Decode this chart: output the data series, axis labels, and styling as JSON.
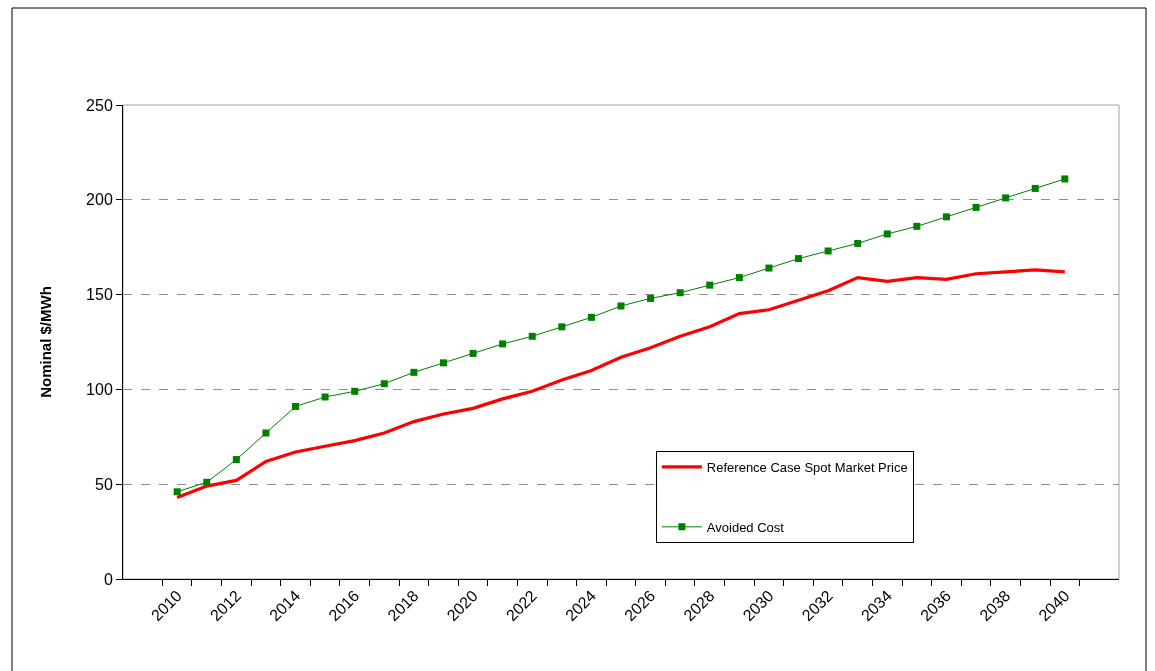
{
  "chart_data": {
    "type": "line",
    "ylabel": "Nominal $/MWh",
    "categories": [
      "2010",
      null,
      "2012",
      null,
      "2014",
      null,
      "2016",
      null,
      "2018",
      null,
      "2020",
      null,
      "2022",
      null,
      "2024",
      null,
      "2026",
      null,
      "2028",
      null,
      "2030",
      null,
      "2032",
      null,
      "2034",
      null,
      "2036",
      null,
      "2038",
      null,
      "2040"
    ],
    "series": [
      {
        "name": "Reference Case Spot Market Price",
        "color": "#ff0000",
        "marker": "none",
        "line_style": "solid",
        "values": [
          43,
          49,
          52,
          62,
          67,
          70,
          73,
          77,
          83,
          87,
          90,
          95,
          99,
          105,
          110,
          117,
          122,
          128,
          133,
          140,
          142,
          147,
          152,
          159,
          157,
          159,
          158,
          161,
          162,
          163,
          162
        ]
      },
      {
        "name": "Avoided Cost",
        "color": "#008000",
        "marker": "square",
        "line_style": "solid",
        "values": [
          46,
          51,
          63,
          77,
          91,
          96,
          99,
          103,
          109,
          114,
          119,
          124,
          128,
          133,
          138,
          144,
          148,
          151,
          155,
          159,
          164,
          169,
          173,
          177,
          182,
          186,
          191,
          196,
          201,
          206,
          211
        ]
      }
    ],
    "ylim": [
      0,
      250
    ],
    "yticks": [
      0,
      50,
      100,
      150,
      200,
      250
    ],
    "grid": "y",
    "legend": "bottom right"
  }
}
